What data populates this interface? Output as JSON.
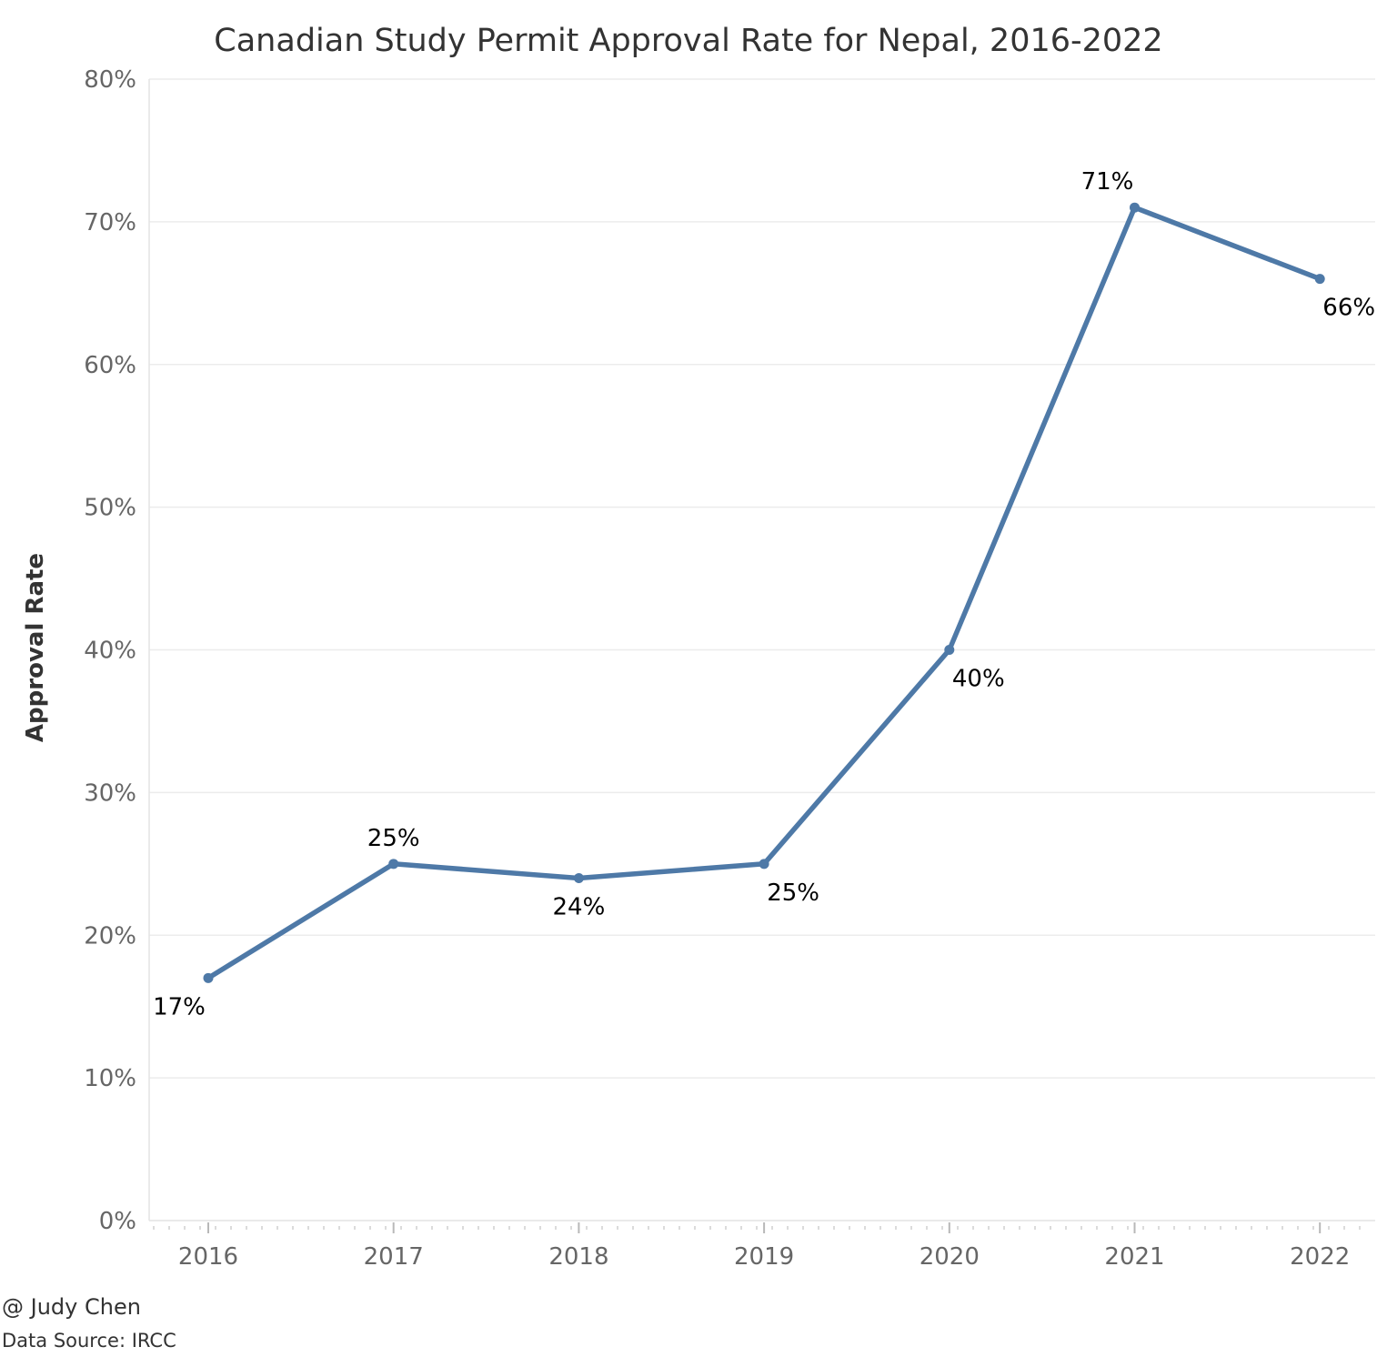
{
  "chart_data": {
    "type": "line",
    "title": "Canadian Study Permit Approval Rate for Nepal, 2016-2022",
    "xlabel": "",
    "ylabel": "Approval Rate",
    "categories": [
      "2016",
      "2017",
      "2018",
      "2019",
      "2020",
      "2021",
      "2022"
    ],
    "series": [
      {
        "values": [
          17,
          25,
          24,
          25,
          40,
          71,
          66
        ],
        "labels": [
          "17%",
          "25%",
          "24%",
          "25%",
          "40%",
          "71%",
          "66%"
        ],
        "color": "#4e79a7"
      }
    ],
    "ylim": [
      0,
      80
    ],
    "yticks": [
      0,
      10,
      20,
      30,
      40,
      50,
      60,
      70,
      80
    ],
    "ytick_labels": [
      "0%",
      "10%",
      "20%",
      "30%",
      "40%",
      "50%",
      "60%",
      "70%",
      "80%"
    ],
    "grid": true,
    "legend": "none"
  },
  "footer": {
    "author": "@ Judy Chen",
    "source": "Data Source: IRCC"
  }
}
